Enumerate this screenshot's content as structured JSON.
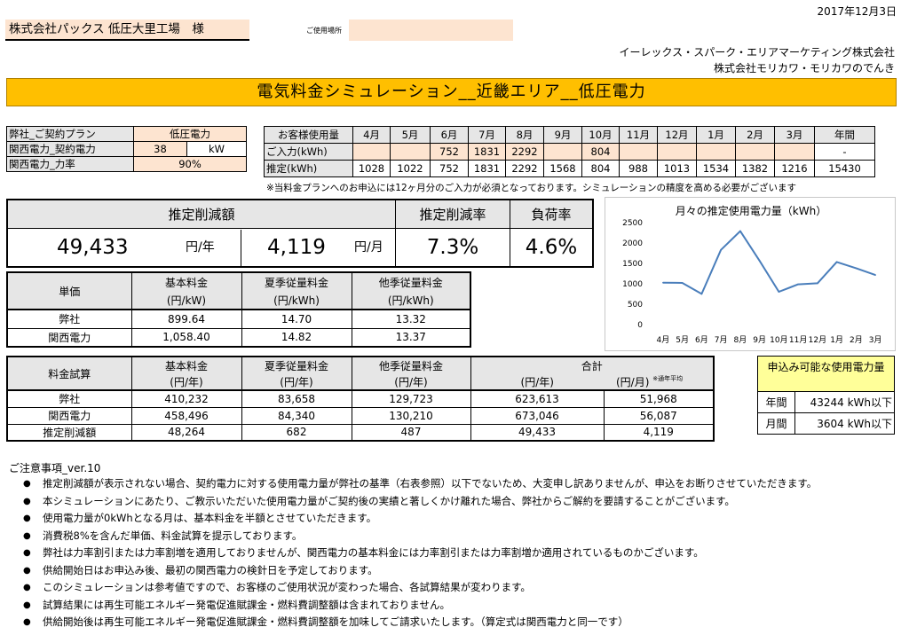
{
  "header": {
    "date": "2017年12月3日",
    "customer": "株式会社パックス 低圧大里工場　様",
    "location_label": "ご使用場所",
    "location_value": "",
    "company_line1": "イーレックス・スパーク・エリアマーケティング株式会社",
    "company_line2": "株式会社モリカワ・モリカワのでんき",
    "title": "電気料金シミュレーション__近畿エリア__低圧電力"
  },
  "plan": {
    "rows": [
      {
        "label": "弊社_ご契約プラン",
        "value": "低圧電力",
        "unit": ""
      },
      {
        "label": "関西電力_契約電力",
        "value": "38",
        "unit": "kW"
      },
      {
        "label": "関西電力_力率",
        "value": "90%",
        "unit": ""
      }
    ]
  },
  "usage": {
    "header_label": "お客様使用量",
    "months": [
      "4月",
      "5月",
      "6月",
      "7月",
      "8月",
      "9月",
      "10月",
      "11月",
      "12月",
      "1月",
      "2月",
      "3月",
      "年間"
    ],
    "input_label": "ご入力(kWh)",
    "input_values": [
      "",
      "",
      "752",
      "1831",
      "2292",
      "",
      "804",
      "",
      "",
      "",
      "",
      "",
      "-"
    ],
    "estimate_label": "推定(kWh)",
    "estimate_values": [
      "1028",
      "1022",
      "752",
      "1831",
      "2292",
      "1568",
      "804",
      "988",
      "1013",
      "1534",
      "1382",
      "1216",
      "15430"
    ],
    "note": "※当料金プランへのお申込には12ヶ月分のご入力が必須となっております。シミュレーションの精度を高める必要がございます"
  },
  "summary": {
    "reduction_label": "推定削減額",
    "rate_label": "推定削減率",
    "load_label": "負荷率",
    "annual_value": "49,433",
    "annual_unit": "円/年",
    "monthly_value": "4,119",
    "monthly_unit": "円/月",
    "rate_value": "7.3%",
    "load_value": "4.6%"
  },
  "unit_price": {
    "corner_label": "単価",
    "headers": [
      {
        "line1": "基本料金",
        "line2": "(円/kW)"
      },
      {
        "line1": "夏季従量料金",
        "line2": "(円/kWh)"
      },
      {
        "line1": "他季従量料金",
        "line2": "(円/kWh)"
      }
    ],
    "rows": [
      {
        "label": "弊社",
        "values": [
          "899.64",
          "14.70",
          "13.32"
        ]
      },
      {
        "label": "関西電力",
        "values": [
          "1,058.40",
          "14.82",
          "13.37"
        ]
      }
    ]
  },
  "calc": {
    "corner_label": "料金試算",
    "headers": [
      {
        "line1": "基本料金",
        "line2": "(円/年)"
      },
      {
        "line1": "夏季従量料金",
        "line2": "(円/年)"
      },
      {
        "line1": "他季従量料金",
        "line2": "(円/年)"
      }
    ],
    "total_label": "合計",
    "total_year_unit": "(円/年)",
    "total_month_unit": "(円/月)",
    "total_month_note": "※通年平均",
    "rows": [
      {
        "label": "弊社",
        "values": [
          "410,232",
          "83,658",
          "129,723",
          "623,613",
          "51,968"
        ]
      },
      {
        "label": "関西電力",
        "values": [
          "458,496",
          "84,340",
          "130,210",
          "673,046",
          "56,087"
        ]
      },
      {
        "label": "推定削減額",
        "values": [
          "48,264",
          "682",
          "487",
          "49,433",
          "4,119"
        ]
      }
    ]
  },
  "application": {
    "title": "申込み可能な使用電力量",
    "rows": [
      {
        "label": "年間",
        "value": "43244 kWh以下"
      },
      {
        "label": "月間",
        "value": "3604 kWh以下"
      }
    ]
  },
  "chart_data": {
    "type": "line",
    "title": "月々の推定使用電力量（kWh）",
    "categories": [
      "4月",
      "5月",
      "6月",
      "7月",
      "8月",
      "9月",
      "10月",
      "11月",
      "12月",
      "1月",
      "2月",
      "3月"
    ],
    "values": [
      1028,
      1022,
      752,
      1831,
      2292,
      1568,
      804,
      988,
      1013,
      1534,
      1382,
      1216
    ],
    "ylim": [
      0,
      2500
    ],
    "yticks": [
      "0",
      "500",
      "1000",
      "1500",
      "2000",
      "2500"
    ],
    "grid": false,
    "color": "#4a7ebb"
  },
  "notes": {
    "title": "ご注意事項_ver.10",
    "items": [
      "推定削減額が表示されない場合、契約電力に対する使用電力量が弊社の基準（右表参照）以下でないため、大変申し訳ありませんが、申込をお断りさせていただきます。",
      "本シミュレーションにあたり、ご教示いただいた使用電力量がご契約後の実績と著しくかけ離れた場合、弊社からご解約を要請することがございます。",
      "使用電力量が0kWhとなる月は、基本料金を半額とさせていただきます。",
      "消費税8%を含んだ単価、料金試算を提示しております。",
      "弊社は力率割引または力率割増を適用しておりませんが、関西電力の基本料金には力率割引または力率割増か適用されているものかございます。",
      "供給開始日はお申込み後、最初の関西電力の検針日を予定しております。",
      "このシミュレーションは参考値ですので、お客様のご使用状況が変わった場合、各試算結果が変わります。",
      "試算結果には再生可能エネルギー発電促進賦課金・燃料費調整額は含まれておりません。",
      "供給開始後は再生可能エネルギー発電促進賦課金・燃料費調整額を加味してご請求いたします。（算定式は関西電力と同一です）"
    ]
  }
}
